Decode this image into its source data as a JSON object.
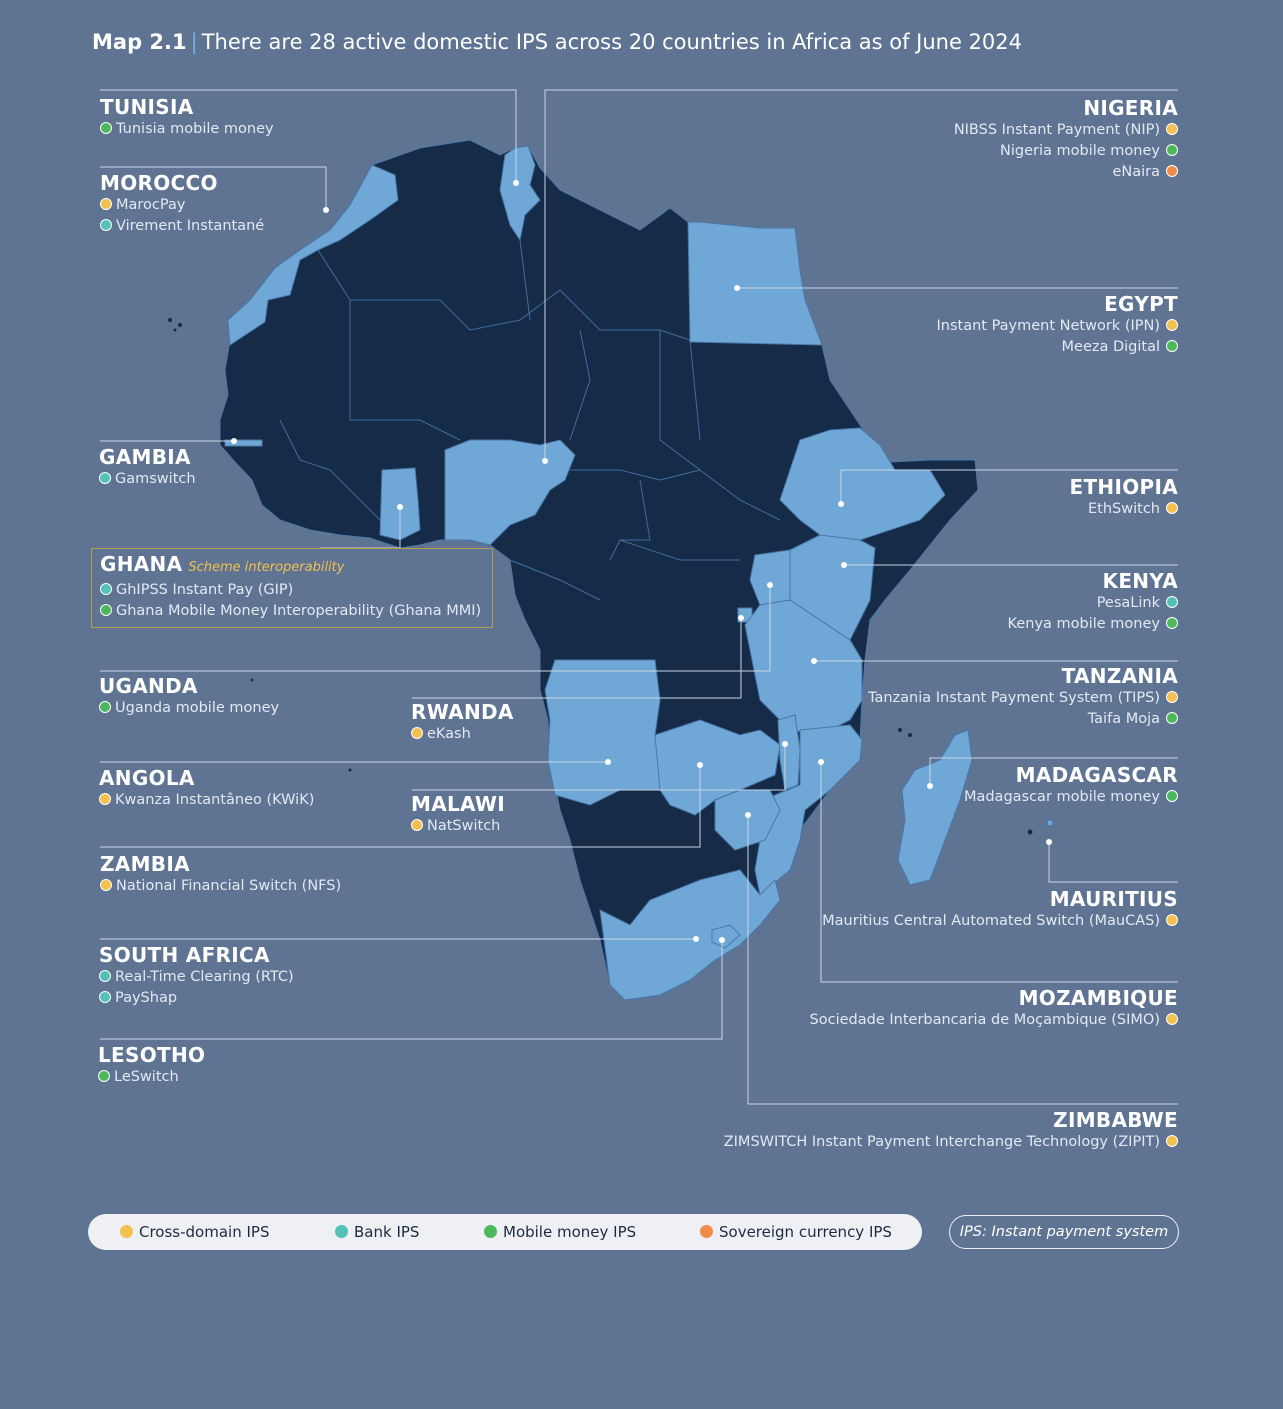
{
  "title": {
    "number": "Map 2.1",
    "text": "There are 28 active domestic IPS across 20 countries in Africa as of June 2024"
  },
  "colors": {
    "background": "#5f7393",
    "non_ips_country": "#162b47",
    "ips_country": "#6fa8d6",
    "cross_domain": "#f2c14e",
    "bank": "#52c2b6",
    "mobile_money": "#4cb85c",
    "sovereign_currency": "#f08c4a"
  },
  "legend": {
    "items": [
      {
        "label": "Cross-domain IPS",
        "type": "cross_domain"
      },
      {
        "label": "Bank IPS",
        "type": "bank"
      },
      {
        "label": "Mobile money IPS",
        "type": "mobile_money"
      },
      {
        "label": "Sovereign currency IPS",
        "type": "sovereign_currency"
      }
    ],
    "note": "IPS: Instant payment system"
  },
  "countries": {
    "tunisia": {
      "name": "TUNISIA",
      "systems": [
        {
          "name": "Tunisia mobile money",
          "type": "mobile_money"
        }
      ]
    },
    "morocco": {
      "name": "MOROCCO",
      "systems": [
        {
          "name": "MarocPay",
          "type": "cross_domain"
        },
        {
          "name": "Virement Instantané",
          "type": "bank"
        }
      ]
    },
    "gambia": {
      "name": "GAMBIA",
      "systems": [
        {
          "name": "Gamswitch",
          "type": "bank"
        }
      ]
    },
    "ghana": {
      "name": "GHANA",
      "note": "Scheme interoperability",
      "systems": [
        {
          "name": "GhIPSS Instant Pay (GIP)",
          "type": "bank"
        },
        {
          "name": "Ghana Mobile Money Interoperability (Ghana MMI)",
          "type": "mobile_money"
        }
      ]
    },
    "uganda": {
      "name": "UGANDA",
      "systems": [
        {
          "name": "Uganda mobile money",
          "type": "mobile_money"
        }
      ]
    },
    "rwanda": {
      "name": "RWANDA",
      "systems": [
        {
          "name": "eKash",
          "type": "cross_domain"
        }
      ]
    },
    "angola": {
      "name": "ANGOLA",
      "systems": [
        {
          "name": "Kwanza Instantâneo (KWiK)",
          "type": "cross_domain"
        }
      ]
    },
    "malawi": {
      "name": "MALAWI",
      "systems": [
        {
          "name": "NatSwitch",
          "type": "cross_domain"
        }
      ]
    },
    "zambia": {
      "name": "ZAMBIA",
      "systems": [
        {
          "name": "National Financial Switch (NFS)",
          "type": "cross_domain"
        }
      ]
    },
    "south_africa": {
      "name": "SOUTH AFRICA",
      "systems": [
        {
          "name": "Real-Time Clearing (RTC)",
          "type": "bank"
        },
        {
          "name": "PayShap",
          "type": "bank"
        }
      ]
    },
    "lesotho": {
      "name": "LESOTHO",
      "systems": [
        {
          "name": "LeSwitch",
          "type": "mobile_money"
        }
      ]
    },
    "nigeria": {
      "name": "NIGERIA",
      "systems": [
        {
          "name": "NIBSS Instant Payment (NIP)",
          "type": "cross_domain"
        },
        {
          "name": "Nigeria mobile money",
          "type": "mobile_money"
        },
        {
          "name": "eNaira",
          "type": "sovereign_currency"
        }
      ]
    },
    "egypt": {
      "name": "EGYPT",
      "systems": [
        {
          "name": "Instant Payment Network (IPN)",
          "type": "cross_domain"
        },
        {
          "name": "Meeza Digital",
          "type": "mobile_money"
        }
      ]
    },
    "ethiopia": {
      "name": "ETHIOPIA",
      "systems": [
        {
          "name": "EthSwitch",
          "type": "cross_domain"
        }
      ]
    },
    "kenya": {
      "name": "KENYA",
      "systems": [
        {
          "name": "PesaLink",
          "type": "bank"
        },
        {
          "name": "Kenya mobile money",
          "type": "mobile_money"
        }
      ]
    },
    "tanzania": {
      "name": "TANZANIA",
      "systems": [
        {
          "name": "Tanzania Instant Payment System (TIPS)",
          "type": "cross_domain"
        },
        {
          "name": "Taifa Moja",
          "type": "mobile_money"
        }
      ]
    },
    "madagascar": {
      "name": "MADAGASCAR",
      "systems": [
        {
          "name": "Madagascar mobile money",
          "type": "mobile_money"
        }
      ]
    },
    "mauritius": {
      "name": "MAURITIUS",
      "systems": [
        {
          "name": "Mauritius Central Automated Switch (MauCAS)",
          "type": "cross_domain"
        }
      ]
    },
    "mozambique": {
      "name": "MOZAMBIQUE",
      "systems": [
        {
          "name": "Sociedade Interbancaria de Moçambique (SIMO)",
          "type": "cross_domain"
        }
      ]
    },
    "zimbabwe": {
      "name": "ZIMBABWE",
      "systems": [
        {
          "name": "ZIMSWITCH Instant Payment Interchange Technology (ZIPIT)",
          "type": "cross_domain"
        }
      ]
    }
  }
}
